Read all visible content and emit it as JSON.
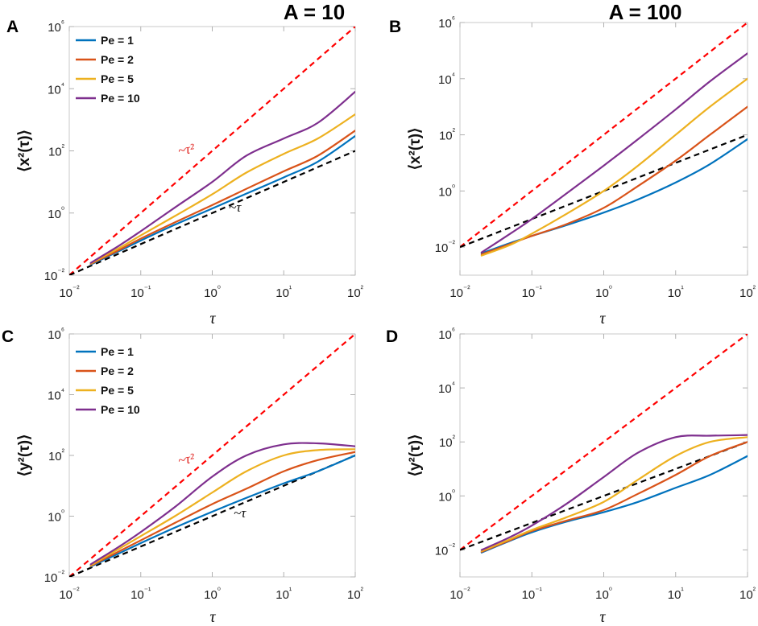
{
  "figure": {
    "column_titles": [
      "A = 10",
      "A = 100"
    ],
    "legend_entries": [
      "Pe = 1",
      "Pe = 2",
      "Pe = 5",
      "Pe = 10"
    ],
    "colors": {
      "Pe = 1": "#0072bd",
      "Pe = 2": "#d95319",
      "Pe = 5": "#edb120",
      "Pe = 10": "#7e2f8e",
      "tau2_ref": "#ff0000",
      "tau_ref": "#000000"
    }
  },
  "chart_data": [
    {
      "panel": "A",
      "type": "line",
      "title": "A = 10",
      "xlabel": "τ",
      "ylabel": "⟨x²(τ)⟩",
      "xscale": "log",
      "yscale": "log",
      "xlim": [
        0.01,
        100
      ],
      "ylim": [
        0.01,
        1000000
      ],
      "xticks": [
        "10⁻²",
        "10⁻¹",
        "10⁰",
        "10¹",
        "10²"
      ],
      "yticks": [
        "10⁻²",
        "10⁰",
        "10²",
        "10⁴",
        "10⁶"
      ],
      "legend": "top-left",
      "annotations": [
        "~τ²",
        "~τ"
      ],
      "reference_lines": [
        {
          "name": "~τ²",
          "style": "dashed",
          "color": "#ff0000",
          "x": [
            0.01,
            100
          ],
          "y": [
            0.01,
            1000000
          ]
        },
        {
          "name": "~τ",
          "style": "dashed",
          "color": "#000000",
          "x": [
            0.01,
            100
          ],
          "y": [
            0.01,
            100
          ]
        }
      ],
      "x": [
        0.02,
        0.05,
        0.1,
        0.3,
        1,
        3,
        10,
        30,
        100
      ],
      "series": [
        {
          "name": "Pe = 1",
          "values": [
            0.022,
            0.06,
            0.13,
            0.42,
            1.4,
            4.2,
            14,
            45,
            300
          ]
        },
        {
          "name": "Pe = 2",
          "values": [
            0.023,
            0.065,
            0.15,
            0.5,
            1.8,
            6,
            22,
            70,
            450
          ]
        },
        {
          "name": "Pe = 5",
          "values": [
            0.024,
            0.075,
            0.19,
            0.8,
            4,
            20,
            80,
            250,
            1500
          ]
        },
        {
          "name": "Pe = 10",
          "values": [
            0.025,
            0.09,
            0.26,
            1.5,
            10,
            70,
            250,
            800,
            8000
          ]
        }
      ]
    },
    {
      "panel": "B",
      "type": "line",
      "title": "A = 100",
      "xlabel": "τ",
      "ylabel": "⟨x²(τ)⟩",
      "xscale": "log",
      "yscale": "log",
      "xlim": [
        0.01,
        100
      ],
      "ylim": [
        0.001,
        1000000
      ],
      "xticks": [
        "10⁻²",
        "10⁻¹",
        "10⁰",
        "10¹",
        "10²"
      ],
      "yticks": [
        "10⁻²",
        "10⁰",
        "10²",
        "10⁴",
        "10⁶"
      ],
      "reference_lines": [
        {
          "name": "~τ²",
          "style": "dashed",
          "color": "#ff0000",
          "x": [
            0.01,
            100
          ],
          "y": [
            0.01,
            1000000
          ]
        },
        {
          "name": "~τ",
          "style": "dashed",
          "color": "#000000",
          "x": [
            0.01,
            100
          ],
          "y": [
            0.01,
            100
          ]
        }
      ],
      "x": [
        0.02,
        0.05,
        0.1,
        0.3,
        1,
        3,
        10,
        30,
        100
      ],
      "series": [
        {
          "name": "Pe = 1",
          "values": [
            0.006,
            0.014,
            0.025,
            0.06,
            0.17,
            0.5,
            2,
            9,
            70
          ]
        },
        {
          "name": "Pe = 2",
          "values": [
            0.0055,
            0.013,
            0.025,
            0.065,
            0.25,
            1.5,
            12,
            100,
            1000
          ]
        },
        {
          "name": "Pe = 5",
          "values": [
            0.005,
            0.012,
            0.03,
            0.15,
            1,
            8,
            100,
            1000,
            10000
          ]
        },
        {
          "name": "Pe = 10",
          "values": [
            0.0065,
            0.03,
            0.1,
            0.8,
            8,
            70,
            800,
            8000,
            80000
          ]
        }
      ]
    },
    {
      "panel": "C",
      "type": "line",
      "title": "",
      "xlabel": "τ",
      "ylabel": "⟨y²(τ)⟩",
      "xscale": "log",
      "yscale": "log",
      "xlim": [
        0.01,
        100
      ],
      "ylim": [
        0.01,
        1000000
      ],
      "xticks": [
        "10⁻²",
        "10⁻¹",
        "10⁰",
        "10¹",
        "10²"
      ],
      "yticks": [
        "10⁻²",
        "10⁰",
        "10²",
        "10⁴",
        "10⁶"
      ],
      "legend": "top-left",
      "annotations": [
        "~τ²",
        "~τ"
      ],
      "reference_lines": [
        {
          "name": "~τ²",
          "style": "dashed",
          "color": "#ff0000",
          "x": [
            0.01,
            100
          ],
          "y": [
            0.01,
            1000000
          ]
        },
        {
          "name": "~τ",
          "style": "dashed",
          "color": "#000000",
          "x": [
            0.01,
            100
          ],
          "y": [
            0.01,
            100
          ]
        }
      ],
      "x": [
        0.02,
        0.05,
        0.1,
        0.3,
        1,
        3,
        10,
        30,
        100
      ],
      "series": [
        {
          "name": "Pe = 1",
          "values": [
            0.022,
            0.06,
            0.13,
            0.42,
            1.4,
            4,
            12,
            30,
            100
          ]
        },
        {
          "name": "Pe = 2",
          "values": [
            0.023,
            0.07,
            0.16,
            0.6,
            2.5,
            8,
            30,
            70,
            130
          ]
        },
        {
          "name": "Pe = 5",
          "values": [
            0.024,
            0.085,
            0.22,
            1,
            6,
            30,
            100,
            150,
            160
          ]
        },
        {
          "name": "Pe = 10",
          "values": [
            0.026,
            0.1,
            0.3,
            2,
            20,
            100,
            230,
            250,
            200
          ]
        }
      ]
    },
    {
      "panel": "D",
      "type": "line",
      "title": "",
      "xlabel": "τ",
      "ylabel": "⟨y²(τ)⟩",
      "xscale": "log",
      "yscale": "log",
      "xlim": [
        0.01,
        100
      ],
      "ylim": [
        0.001,
        1000000
      ],
      "xticks": [
        "10⁻²",
        "10⁻¹",
        "10⁰",
        "10¹",
        "10²"
      ],
      "yticks": [
        "10⁻²",
        "10⁰",
        "10²",
        "10⁴",
        "10⁶"
      ],
      "reference_lines": [
        {
          "name": "~τ²",
          "style": "dashed",
          "color": "#ff0000",
          "x": [
            0.01,
            100
          ],
          "y": [
            0.01,
            1000000
          ]
        },
        {
          "name": "~τ",
          "style": "dashed",
          "color": "#000000",
          "x": [
            0.01,
            100
          ],
          "y": [
            0.01,
            100
          ]
        }
      ],
      "x": [
        0.02,
        0.05,
        0.1,
        0.3,
        1,
        3,
        10,
        30,
        100
      ],
      "series": [
        {
          "name": "Pe = 1",
          "values": [
            0.008,
            0.022,
            0.045,
            0.11,
            0.25,
            0.6,
            2,
            6,
            30
          ]
        },
        {
          "name": "Pe = 2",
          "values": [
            0.0085,
            0.023,
            0.05,
            0.12,
            0.3,
            1.2,
            6,
            30,
            100
          ]
        },
        {
          "name": "Pe = 5",
          "values": [
            0.009,
            0.025,
            0.055,
            0.16,
            0.6,
            4,
            30,
            100,
            150
          ]
        },
        {
          "name": "Pe = 10",
          "values": [
            0.01,
            0.03,
            0.08,
            0.5,
            5,
            40,
            150,
            170,
            180
          ]
        }
      ]
    }
  ]
}
